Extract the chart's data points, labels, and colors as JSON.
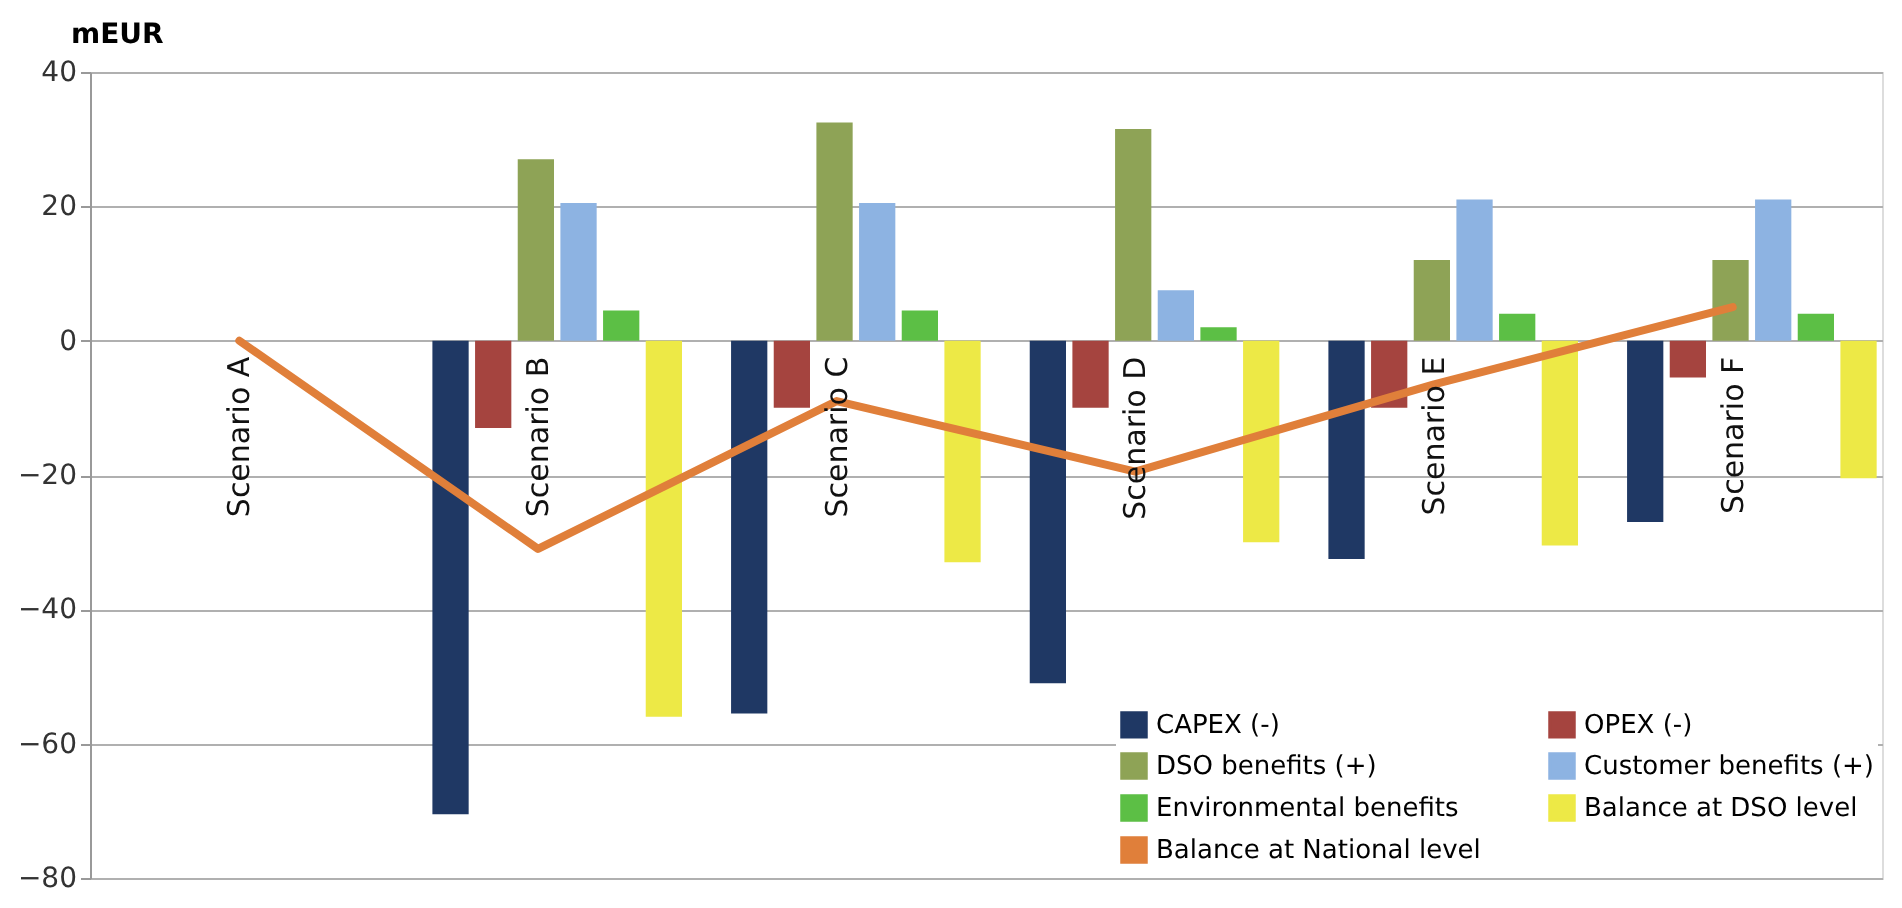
{
  "chart_data": {
    "type": "bar",
    "ylabel": "mEUR",
    "categories": [
      "Scenario A",
      "Scenario B",
      "Scenario C",
      "Scenario D",
      "Scenario E",
      "Scenario F"
    ],
    "series": [
      {
        "name": "CAPEX (-)",
        "color": "#1f3864",
        "values": [
          null,
          -70.5,
          -55.5,
          -51,
          -32.5,
          -27
        ]
      },
      {
        "name": "OPEX (-)",
        "color": "#a5443f",
        "values": [
          null,
          -13,
          -10,
          -10,
          -10,
          -5.5
        ]
      },
      {
        "name": "DSO benefits (+)",
        "color": "#8ea356",
        "values": [
          null,
          27,
          32.5,
          31.5,
          12,
          12
        ]
      },
      {
        "name": "Customer benefits (+)",
        "color": "#8db3e2",
        "values": [
          null,
          20.5,
          20.5,
          7.5,
          21,
          21
        ]
      },
      {
        "name": "Environmental benefits",
        "color": "#5cbf45",
        "values": [
          null,
          4.5,
          4.5,
          2,
          4,
          4
        ]
      },
      {
        "name": "Balance at DSO level",
        "color": "#ede946",
        "values": [
          null,
          -56,
          -33,
          -30,
          -30.5,
          -20.5
        ]
      },
      {
        "name": "Balance at National level",
        "color": "#e07f3a",
        "type": "line",
        "values": [
          0,
          -31,
          -9,
          -19.5,
          -6.5,
          5
        ]
      }
    ],
    "ylim": [
      -80,
      40
    ],
    "yticks": [
      -80,
      -60,
      -40,
      -20,
      0,
      20,
      40
    ],
    "grid": "y",
    "legend": "bottom right",
    "line_style": "solid",
    "marker": "none"
  }
}
